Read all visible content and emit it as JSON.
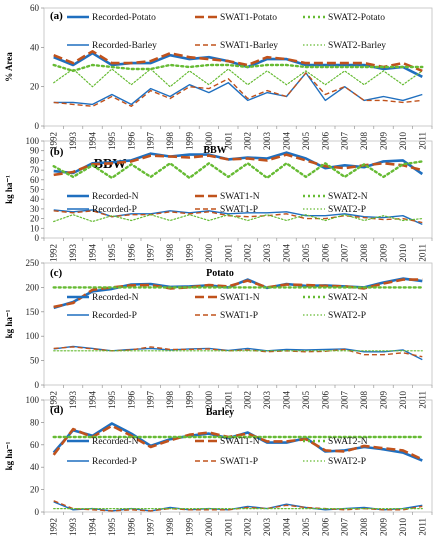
{
  "chart_data": [
    {
      "type": "line",
      "panel_label": "(a)",
      "title": "",
      "ylabel": "% Area",
      "ylim": [
        0,
        60
      ],
      "yticks": [
        0,
        20,
        40,
        60
      ],
      "x": [
        "1992",
        "1993",
        "1994",
        "1995",
        "1996",
        "1997",
        "1998",
        "1999",
        "2000",
        "2001",
        "2002",
        "2003",
        "2004",
        "2005",
        "2006",
        "2007",
        "2008",
        "2009",
        "2010",
        "2011"
      ],
      "series": [
        {
          "name": "Recorded-Potato",
          "color": "#1f6fbf",
          "dash": "solid",
          "width": 2.6,
          "values": [
            35,
            31,
            37,
            31,
            32,
            32,
            36,
            34,
            35,
            33,
            30,
            34,
            34,
            31,
            31,
            31,
            31,
            29,
            30,
            25
          ]
        },
        {
          "name": "SWAT1-Potato",
          "color": "#c0521c",
          "dash": "longdash",
          "width": 2.6,
          "values": [
            36,
            32,
            38,
            32,
            32,
            33,
            37,
            35,
            34,
            33,
            31,
            35,
            34,
            32,
            32,
            32,
            32,
            30,
            32,
            28
          ]
        },
        {
          "name": "SWAT2-Potato",
          "color": "#66bb33",
          "dash": "dot",
          "width": 2.4,
          "values": [
            31,
            28,
            31,
            30,
            29,
            29,
            31,
            30,
            31,
            31,
            30,
            31,
            31,
            30,
            30,
            30,
            30,
            30,
            30,
            30
          ]
        },
        {
          "name": "Recorded-Barley",
          "color": "#1f6fbf",
          "dash": "solid",
          "width": 1.4,
          "values": [
            12,
            12,
            11,
            16,
            11,
            19,
            15,
            21,
            17,
            22,
            13,
            17,
            15,
            27,
            13,
            20,
            13,
            15,
            13,
            16
          ]
        },
        {
          "name": "SWAT1-Barley",
          "color": "#c0521c",
          "dash": "shortdash",
          "width": 1.4,
          "values": [
            12,
            11,
            10,
            15,
            10,
            18,
            14,
            20,
            19,
            24,
            14,
            18,
            15,
            27,
            16,
            20,
            13,
            13,
            12,
            13
          ]
        },
        {
          "name": "SWAT2-Barley",
          "color": "#66bb33",
          "dash": "dotthin",
          "width": 1.2,
          "values": [
            22,
            29,
            20,
            29,
            21,
            29,
            20,
            28,
            21,
            29,
            21,
            28,
            21,
            28,
            21,
            28,
            21,
            28,
            21,
            28
          ]
        }
      ]
    },
    {
      "type": "line",
      "panel_label": "(b)",
      "title": "BBW",
      "annotation": "BBW",
      "ylabel": "kg ha⁻¹",
      "ylim": [
        0,
        100
      ],
      "yticks": [
        0,
        10,
        20,
        30,
        40,
        50,
        60,
        70,
        80,
        90,
        100
      ],
      "x": [
        "1992",
        "1993",
        "1994",
        "1995",
        "1996",
        "1997",
        "1998",
        "1999",
        "2000",
        "2001",
        "2002",
        "2003",
        "2004",
        "2005",
        "2006",
        "2007",
        "2008",
        "2009",
        "2010",
        "2011"
      ],
      "series": [
        {
          "name": "Recorded-N",
          "color": "#1f6fbf",
          "dash": "solid",
          "width": 2.6,
          "values": [
            69,
            67,
            77,
            78,
            80,
            87,
            84,
            86,
            86,
            81,
            83,
            82,
            88,
            82,
            72,
            75,
            73,
            79,
            80,
            66
          ]
        },
        {
          "name": "SWAT1-N",
          "color": "#c0521c",
          "dash": "longdash",
          "width": 2.6,
          "values": [
            65,
            68,
            76,
            77,
            79,
            85,
            84,
            83,
            85,
            81,
            82,
            80,
            86,
            80,
            74,
            72,
            75,
            77,
            75,
            70
          ]
        },
        {
          "name": "SWAT2-N",
          "color": "#66bb33",
          "dash": "dot",
          "width": 2.4,
          "values": [
            74,
            63,
            75,
            62,
            76,
            63,
            77,
            62,
            77,
            63,
            77,
            62,
            77,
            63,
            77,
            63,
            76,
            63,
            76,
            79
          ]
        },
        {
          "name": "Recorded-P",
          "color": "#1f6fbf",
          "dash": "solid",
          "width": 1.4,
          "values": [
            29,
            27,
            29,
            22,
            25,
            25,
            28,
            26,
            28,
            25,
            26,
            26,
            27,
            23,
            23,
            25,
            22,
            21,
            23,
            14
          ]
        },
        {
          "name": "SWAT1-P",
          "color": "#c0521c",
          "dash": "shortdash",
          "width": 1.4,
          "values": [
            28,
            26,
            28,
            22,
            24,
            24,
            27,
            25,
            27,
            23,
            22,
            23,
            25,
            20,
            20,
            23,
            21,
            19,
            20,
            16
          ]
        },
        {
          "name": "SWAT2-P",
          "color": "#66bb33",
          "dash": "dotthin",
          "width": 1.2,
          "values": [
            17,
            24,
            17,
            23,
            18,
            24,
            18,
            24,
            18,
            24,
            18,
            24,
            18,
            24,
            18,
            24,
            18,
            23,
            18,
            20
          ]
        }
      ]
    },
    {
      "type": "line",
      "panel_label": "(c)",
      "title": "Potato",
      "ylabel": "kg ha⁻¹",
      "ylim": [
        0,
        250
      ],
      "yticks": [
        0,
        50,
        100,
        150,
        200,
        250
      ],
      "x": [
        "1992",
        "1993",
        "1994",
        "1995",
        "1996",
        "1997",
        "1998",
        "1999",
        "2000",
        "2001",
        "2002",
        "2003",
        "2004",
        "2005",
        "2006",
        "2007",
        "2008",
        "2009",
        "2010",
        "2011"
      ],
      "series": [
        {
          "name": "Recorded-N",
          "color": "#1f6fbf",
          "dash": "solid",
          "width": 2.6,
          "values": [
            158,
            170,
            192,
            197,
            206,
            207,
            201,
            202,
            204,
            200,
            216,
            199,
            207,
            203,
            204,
            202,
            200,
            210,
            218,
            213
          ]
        },
        {
          "name": "SWAT1-N",
          "color": "#c0521c",
          "dash": "longdash",
          "width": 2.6,
          "values": [
            160,
            168,
            195,
            200,
            204,
            205,
            198,
            200,
            205,
            202,
            214,
            200,
            206,
            205,
            203,
            202,
            198,
            208,
            216,
            216
          ]
        },
        {
          "name": "SWAT2-N",
          "color": "#66bb33",
          "dash": "dot",
          "width": 2.4,
          "values": [
            200,
            200,
            200,
            200,
            200,
            200,
            200,
            200,
            200,
            200,
            200,
            200,
            200,
            200,
            200,
            200,
            200,
            200,
            200,
            200
          ]
        },
        {
          "name": "Recorded-P",
          "color": "#1f6fbf",
          "dash": "solid",
          "width": 1.4,
          "values": [
            74,
            79,
            75,
            70,
            73,
            75,
            72,
            74,
            75,
            71,
            75,
            70,
            73,
            72,
            73,
            74,
            68,
            68,
            72,
            52
          ]
        },
        {
          "name": "SWAT1-P",
          "color": "#c0521c",
          "dash": "shortdash",
          "width": 1.4,
          "values": [
            75,
            78,
            74,
            70,
            72,
            78,
            73,
            73,
            74,
            70,
            72,
            68,
            70,
            68,
            69,
            73,
            62,
            62,
            66,
            58
          ]
        },
        {
          "name": "SWAT2-P",
          "color": "#66bb33",
          "dash": "dotthin",
          "width": 1.2,
          "values": [
            70,
            70,
            70,
            70,
            70,
            70,
            70,
            70,
            70,
            70,
            70,
            70,
            70,
            70,
            70,
            70,
            70,
            70,
            70,
            70
          ]
        }
      ]
    },
    {
      "type": "line",
      "panel_label": "(d)",
      "title": "Barley",
      "ylabel": "kg ha⁻¹",
      "ylim": [
        0,
        100
      ],
      "yticks": [
        0,
        20,
        40,
        60,
        80,
        100
      ],
      "x": [
        "1992",
        "1993",
        "1994",
        "1995",
        "1996",
        "1997",
        "1998",
        "1999",
        "2000",
        "2001",
        "2002",
        "2003",
        "2004",
        "2005",
        "2006",
        "2007",
        "2008",
        "2009",
        "2010",
        "2011"
      ],
      "series": [
        {
          "name": "Recorded-N",
          "color": "#1f6fbf",
          "dash": "solid",
          "width": 2.6,
          "values": [
            53,
            73,
            68,
            79,
            70,
            59,
            65,
            68,
            70,
            66,
            71,
            62,
            62,
            66,
            54,
            55,
            58,
            56,
            53,
            46
          ]
        },
        {
          "name": "SWAT1-N",
          "color": "#c0521c",
          "dash": "longdash",
          "width": 2.6,
          "values": [
            51,
            74,
            67,
            77,
            68,
            58,
            64,
            69,
            71,
            67,
            70,
            63,
            63,
            65,
            55,
            54,
            59,
            57,
            55,
            47
          ]
        },
        {
          "name": "SWAT2-N",
          "color": "#66bb33",
          "dash": "dot",
          "width": 2.4,
          "values": [
            67,
            67,
            67,
            67,
            67,
            67,
            67,
            67,
            67,
            67,
            67,
            67,
            67,
            67,
            67,
            67,
            67,
            67,
            67,
            67
          ]
        },
        {
          "name": "Recorded-P",
          "color": "#1f6fbf",
          "dash": "solid",
          "width": 1.4,
          "values": [
            9,
            2,
            3,
            1,
            3,
            1,
            4,
            2,
            3,
            2,
            5,
            3,
            7,
            4,
            2,
            3,
            4,
            2,
            3,
            6
          ]
        },
        {
          "name": "SWAT1-P",
          "color": "#c0521c",
          "dash": "shortdash",
          "width": 1.4,
          "values": [
            10,
            3,
            2,
            1,
            2,
            1,
            3,
            2,
            2,
            2,
            4,
            3,
            6,
            4,
            3,
            2,
            3,
            2,
            2,
            5
          ]
        },
        {
          "name": "SWAT2-P",
          "color": "#66bb33",
          "dash": "dotthin",
          "width": 1.2,
          "values": [
            3,
            3,
            3,
            3,
            3,
            3,
            3,
            3,
            3,
            3,
            3,
            3,
            3,
            3,
            3,
            3,
            3,
            3,
            3,
            3
          ]
        }
      ]
    }
  ]
}
